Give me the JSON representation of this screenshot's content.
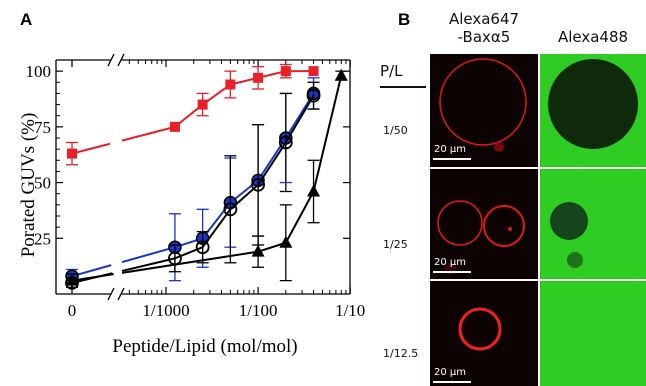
{
  "panel_a_label": "A",
  "panel_b_label": "B",
  "chart_data": {
    "type": "line",
    "title": "",
    "xlabel": "Peptide/Lipid (mol/mol)",
    "ylabel": "Porated GUVs (%)",
    "x_scale": "log10 with axis break; 0 shown separately",
    "x_tick_labels": [
      "0",
      "1/1000",
      "1/100",
      "1/10"
    ],
    "y_tick_labels": [
      "25",
      "50",
      "75",
      "100"
    ],
    "ylim": [
      0,
      105
    ],
    "xlim": [
      0.00035,
      0.11
    ],
    "grid": false,
    "legend": "none",
    "series": [
      {
        "color": "#e8202a",
        "marker": "filled-square",
        "line": "red-solid",
        "points": [
          {
            "x": 0,
            "y": 63,
            "err": 5
          },
          {
            "x": 0.00125,
            "y": 75,
            "err": 0
          },
          {
            "x": 0.0025,
            "y": 85,
            "err": 5
          },
          {
            "x": 0.005,
            "y": 94,
            "err": 6
          },
          {
            "x": 0.01,
            "y": 97,
            "err": 5
          },
          {
            "x": 0.02,
            "y": 100,
            "err": 3
          },
          {
            "x": 0.04,
            "y": 100,
            "err": 0
          }
        ]
      },
      {
        "color": "#1a35c8",
        "marker": "filled-circle",
        "line": "blue-solid",
        "points": [
          {
            "x": 0,
            "y": 8,
            "err": 3
          },
          {
            "x": 0.00125,
            "y": 21,
            "err": 15
          },
          {
            "x": 0.0025,
            "y": 25,
            "err": 13
          },
          {
            "x": 0.005,
            "y": 41,
            "err": 20
          },
          {
            "x": 0.01,
            "y": 51,
            "err": 25
          },
          {
            "x": 0.02,
            "y": 70,
            "err": 20
          },
          {
            "x": 0.04,
            "y": 90,
            "err": 7
          }
        ]
      },
      {
        "color": "#000000",
        "marker": "open-circle",
        "line": "black-solid",
        "points": [
          {
            "x": 0,
            "y": 5,
            "err": 2
          },
          {
            "x": 0.00125,
            "y": 16,
            "err": 6
          },
          {
            "x": 0.0025,
            "y": 21,
            "err": 7
          },
          {
            "x": 0.005,
            "y": 38,
            "err": 24
          },
          {
            "x": 0.01,
            "y": 49,
            "err": 27
          },
          {
            "x": 0.02,
            "y": 68,
            "err": 22
          },
          {
            "x": 0.04,
            "y": 89,
            "err": 6
          }
        ]
      },
      {
        "color": "#000000",
        "marker": "filled-triangle",
        "line": "black-solid",
        "points": [
          {
            "x": 0,
            "y": 6,
            "err": 3
          },
          {
            "x": 0.01,
            "y": 19,
            "err": 7
          },
          {
            "x": 0.02,
            "y": 23,
            "err": 17
          },
          {
            "x": 0.04,
            "y": 46,
            "err": 14
          },
          {
            "x": 0.08,
            "y": 98,
            "err": 2
          }
        ]
      }
    ]
  },
  "panel_b": {
    "header_left": "Alexa647\n-Baxα5",
    "header_right": "Alexa488",
    "pl_title": "P/L",
    "rows": [
      {
        "ratio": "1/50",
        "scale": "20 µm"
      },
      {
        "ratio": "1/25",
        "scale": "20 µm"
      },
      {
        "ratio": "1/12.5",
        "scale": "20 µm"
      }
    ],
    "colors": {
      "red_channel": "#e01818",
      "green_channel": "#2fcc23",
      "background": "#0d0202"
    }
  }
}
